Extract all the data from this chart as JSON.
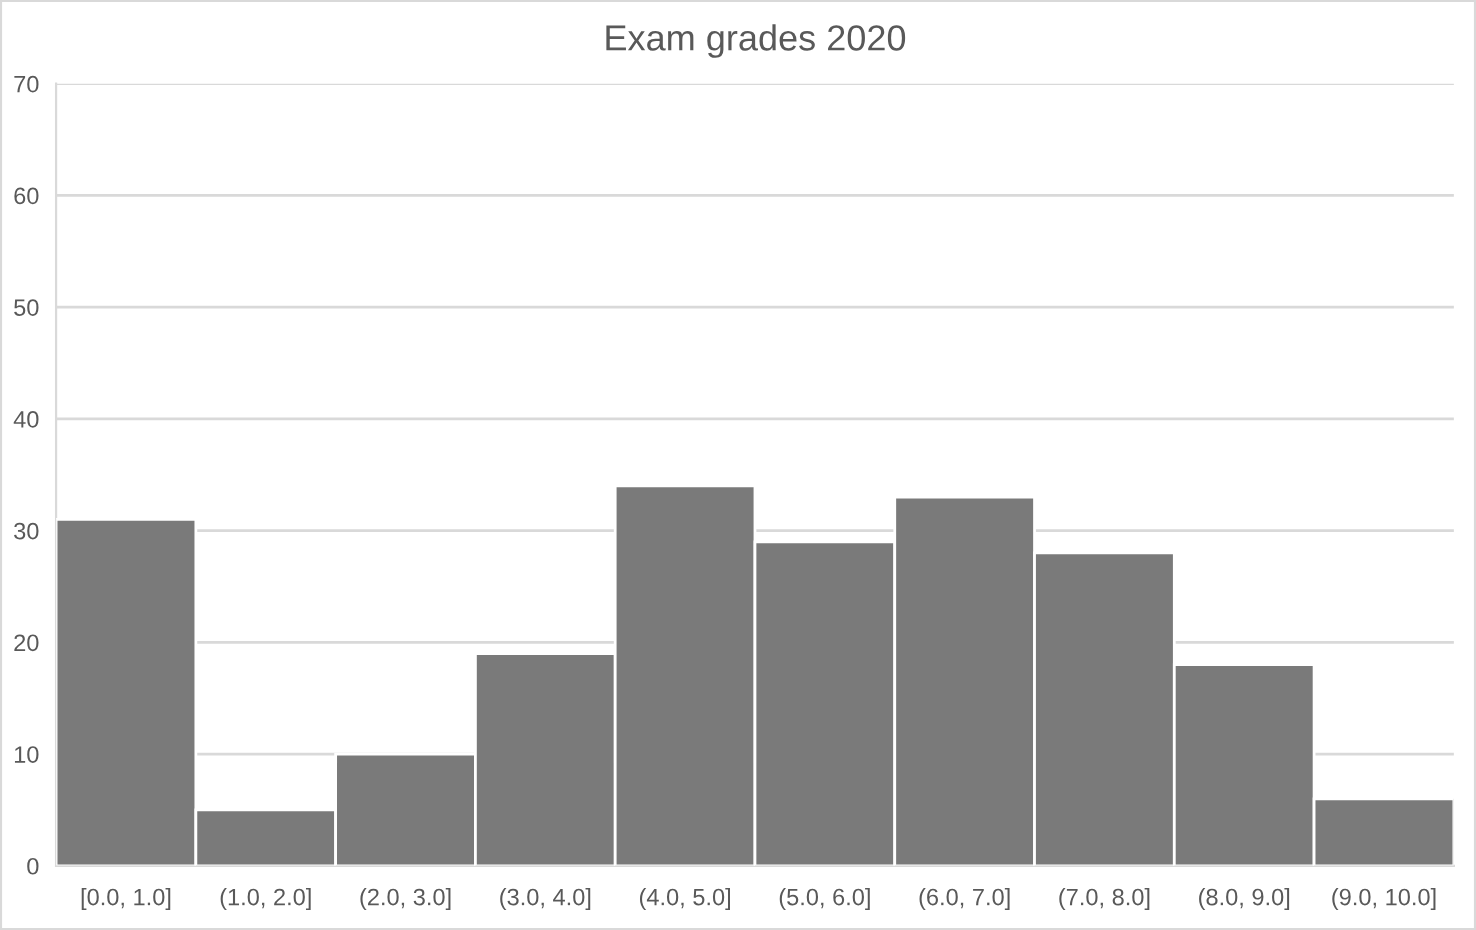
{
  "chart_data": {
    "type": "bar",
    "title": "Exam grades 2020",
    "categories": [
      "[0.0, 1.0]",
      "(1.0, 2.0]",
      "(2.0, 3.0]",
      "(3.0, 4.0]",
      "(4.0, 5.0]",
      "(5.0, 6.0]",
      "(6.0, 7.0]",
      "(7.0, 8.0]",
      "(8.0, 9.0]",
      "(9.0, 10.0]"
    ],
    "values": [
      31,
      5,
      10,
      19,
      34,
      29,
      33,
      28,
      18,
      6
    ],
    "color": "#7a7a7a",
    "ylim": [
      0,
      70
    ],
    "yticks": [
      0,
      10,
      20,
      30,
      40,
      50,
      60,
      70
    ],
    "grid": "y"
  }
}
